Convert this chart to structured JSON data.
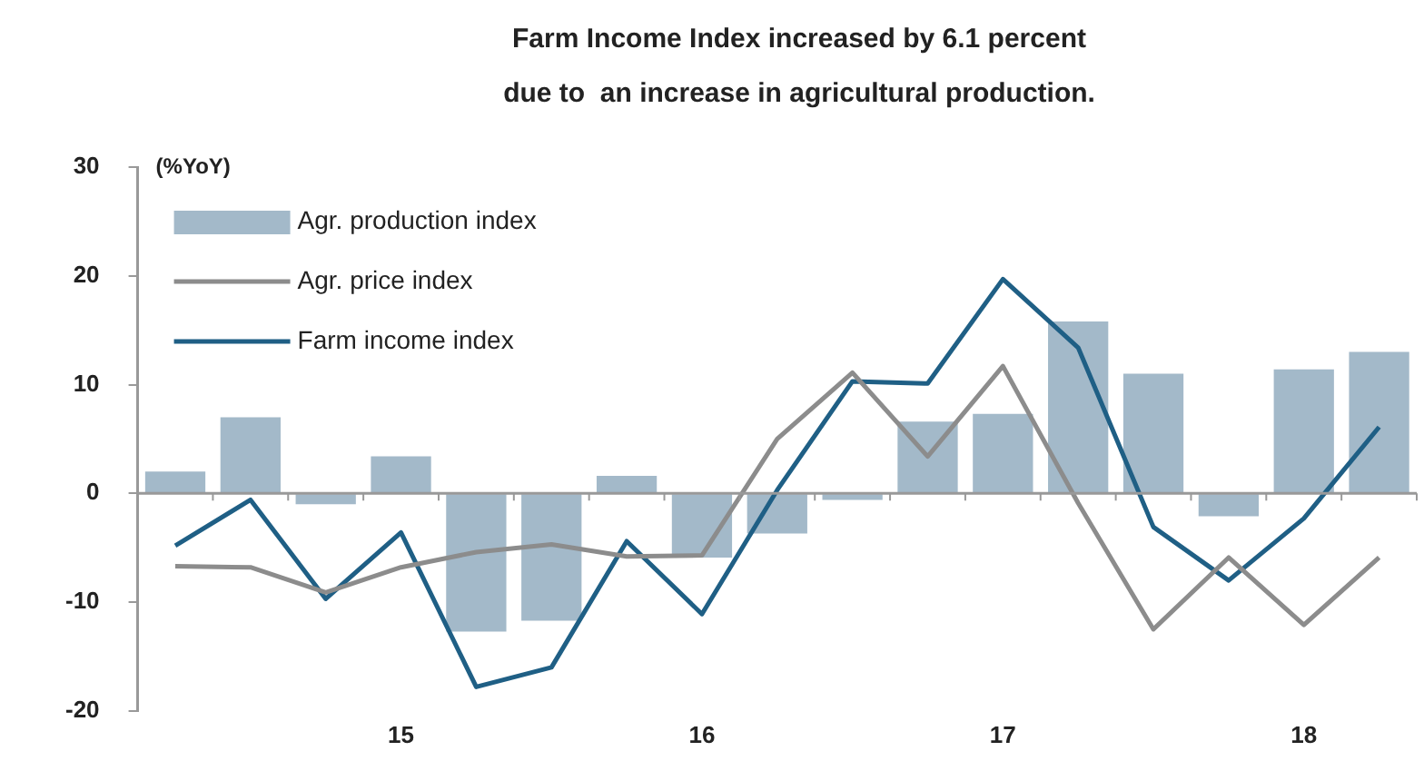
{
  "chart_data": {
    "type": "bar",
    "title": "Farm Income Index increased by 6.1 percent\ndue to  an increase in agricultural production.",
    "ylabel": "(%YoY)",
    "categories": [
      null,
      null,
      null,
      "15",
      null,
      null,
      null,
      "16",
      null,
      null,
      null,
      "17",
      null,
      null,
      null,
      "18",
      null
    ],
    "series": [
      {
        "name": "Agr. production index",
        "color": "#a3b9c9",
        "values": [
          2.0,
          7.0,
          -1.0,
          3.4,
          -12.7,
          -11.7,
          1.6,
          -5.9,
          -3.7,
          -0.6,
          6.6,
          7.3,
          15.8,
          11.0,
          -2.1,
          11.4,
          13.0
        ]
      },
      {
        "name": "Agr. price index",
        "type": "line",
        "color": "#8c8c8c",
        "values": [
          -6.7,
          -6.8,
          -9.1,
          -6.8,
          -5.4,
          -4.7,
          -5.8,
          -5.7,
          5.0,
          11.1,
          3.4,
          11.7,
          -0.9,
          -12.5,
          -5.9,
          -12.1,
          -5.9
        ]
      },
      {
        "name": "Farm income index",
        "type": "line",
        "color": "#1f5f85",
        "values": [
          -4.8,
          -0.6,
          -9.7,
          -3.6,
          -17.8,
          -16.0,
          -4.4,
          -11.1,
          0.3,
          10.3,
          10.1,
          19.7,
          13.4,
          -3.1,
          -8.0,
          -2.3,
          6.1
        ]
      }
    ],
    "ylim": [
      -20,
      30
    ],
    "yticks": [
      -20,
      -10,
      0,
      10,
      20,
      30
    ],
    "ref_lines": [
      {
        "axis": "y",
        "value": 0,
        "color": "#999999"
      }
    ],
    "legend": "top left",
    "marker": "none",
    "line_style": "solid"
  }
}
